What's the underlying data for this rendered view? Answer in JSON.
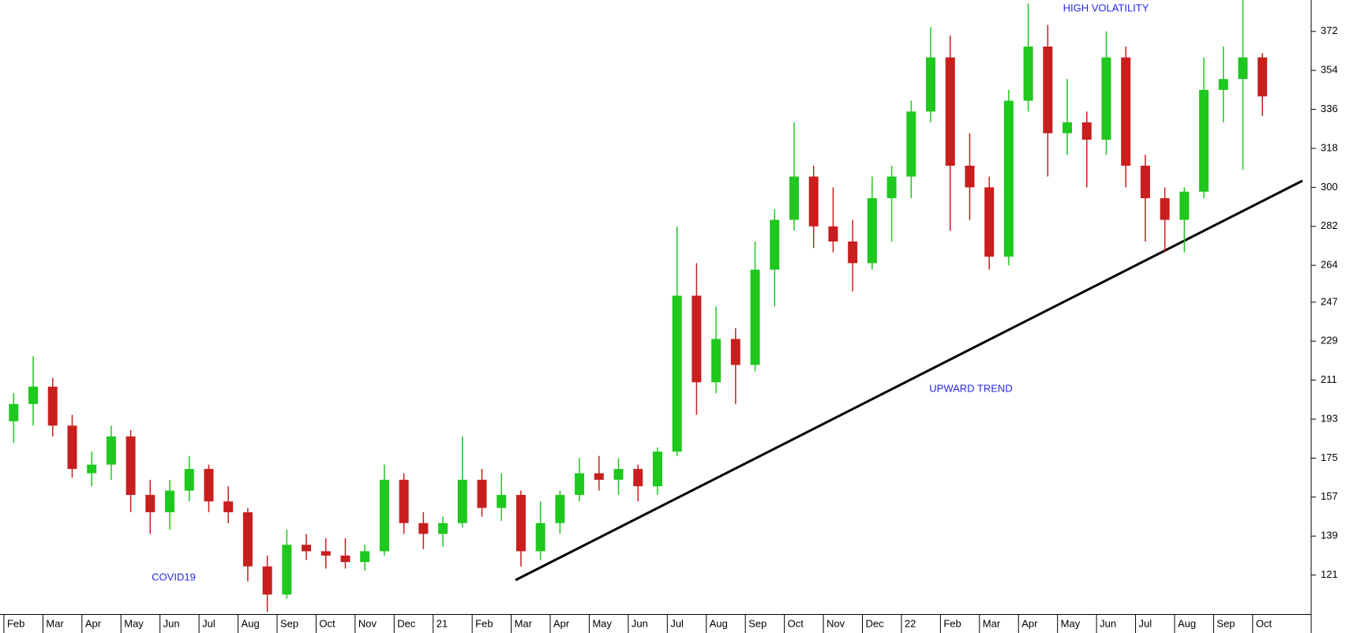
{
  "chart_data": {
    "type": "candlestick",
    "x": [
      0.25,
      0.75,
      1.25,
      1.75,
      2.25,
      2.75,
      3.25,
      3.75,
      4.25,
      4.75,
      5.25,
      5.75,
      6.25,
      6.75,
      7.25,
      7.75,
      8.25,
      8.75,
      9.25,
      9.75,
      10.25,
      10.75,
      11.25,
      11.75,
      12.25,
      12.75,
      13.25,
      13.75,
      14.25,
      14.75,
      15.25,
      15.75,
      16.25,
      16.75,
      17.25,
      17.75,
      18.25,
      18.75,
      19.25,
      19.75,
      20.25,
      20.75,
      21.25,
      21.75,
      22.25,
      22.75,
      23.25,
      23.75,
      24.25,
      24.75,
      25.25,
      25.75,
      26.25,
      26.75,
      27.25,
      27.75,
      28.25,
      28.75,
      29.25,
      29.75,
      30.25,
      30.75,
      31.25,
      31.75,
      32.25
    ],
    "open": [
      192,
      200,
      208,
      190,
      168,
      172,
      185,
      158,
      150,
      160,
      170,
      155,
      150,
      125,
      112,
      135,
      132,
      130,
      127,
      132,
      165,
      145,
      140,
      145,
      165,
      152,
      158,
      132,
      145,
      158,
      168,
      165,
      170,
      162,
      178,
      250,
      210,
      230,
      218,
      262,
      285,
      305,
      282,
      275,
      265,
      295,
      305,
      335,
      360,
      310,
      300,
      268,
      340,
      365,
      325,
      330,
      322,
      360,
      310,
      295,
      285,
      298,
      345,
      350,
      360
    ],
    "high": [
      205,
      222,
      212,
      195,
      178,
      190,
      188,
      165,
      165,
      176,
      172,
      162,
      152,
      130,
      142,
      140,
      138,
      138,
      135,
      172,
      168,
      150,
      148,
      185,
      170,
      168,
      160,
      155,
      160,
      175,
      176,
      175,
      172,
      180,
      282,
      265,
      245,
      235,
      275,
      290,
      330,
      310,
      300,
      285,
      305,
      310,
      340,
      374,
      370,
      325,
      305,
      345,
      385,
      375,
      350,
      335,
      372,
      365,
      315,
      300,
      300,
      360,
      365,
      387,
      362
    ],
    "low": [
      182,
      190,
      185,
      166,
      162,
      165,
      150,
      140,
      142,
      155,
      150,
      145,
      118,
      104,
      110,
      128,
      124,
      124,
      123,
      130,
      140,
      133,
      134,
      143,
      148,
      146,
      125,
      128,
      140,
      155,
      160,
      158,
      155,
      158,
      176,
      195,
      205,
      200,
      215,
      245,
      280,
      272,
      270,
      252,
      262,
      275,
      295,
      330,
      280,
      285,
      262,
      264,
      335,
      305,
      315,
      300,
      315,
      300,
      275,
      270,
      270,
      295,
      330,
      308,
      333
    ],
    "close": [
      200,
      208,
      190,
      170,
      172,
      185,
      158,
      150,
      160,
      170,
      155,
      150,
      125,
      112,
      135,
      132,
      130,
      127,
      132,
      165,
      145,
      140,
      145,
      165,
      152,
      158,
      132,
      145,
      158,
      168,
      165,
      170,
      162,
      178,
      250,
      210,
      230,
      218,
      262,
      285,
      305,
      282,
      275,
      265,
      295,
      305,
      335,
      360,
      310,
      300,
      268,
      340,
      365,
      325,
      330,
      322,
      360,
      310,
      295,
      285,
      298,
      345,
      350,
      360,
      342
    ],
    "up_color": "#1ec81e",
    "down_color": "#c81e1e",
    "xlim": [
      -0.1,
      33.5
    ],
    "xticks": [
      {
        "value": 0,
        "label": "Feb"
      },
      {
        "value": 1,
        "label": "Mar"
      },
      {
        "value": 2,
        "label": "Apr"
      },
      {
        "value": 3,
        "label": "May"
      },
      {
        "value": 4,
        "label": "Jun"
      },
      {
        "value": 5,
        "label": "Jul"
      },
      {
        "value": 6,
        "label": "Aug"
      },
      {
        "value": 7,
        "label": "Sep"
      },
      {
        "value": 8,
        "label": "Oct"
      },
      {
        "value": 9,
        "label": "Nov"
      },
      {
        "value": 10,
        "label": "Dec"
      },
      {
        "value": 11,
        "label": "21"
      },
      {
        "value": 12,
        "label": "Feb"
      },
      {
        "value": 13,
        "label": "Mar"
      },
      {
        "value": 14,
        "label": "Apr"
      },
      {
        "value": 15,
        "label": "May"
      },
      {
        "value": 16,
        "label": "Jun"
      },
      {
        "value": 17,
        "label": "Jul"
      },
      {
        "value": 18,
        "label": "Aug"
      },
      {
        "value": 19,
        "label": "Sep"
      },
      {
        "value": 20,
        "label": "Oct"
      },
      {
        "value": 21,
        "label": "Nov"
      },
      {
        "value": 22,
        "label": "Dec"
      },
      {
        "value": 23,
        "label": "22"
      },
      {
        "value": 24,
        "label": "Feb"
      },
      {
        "value": 25,
        "label": "Mar"
      },
      {
        "value": 26,
        "label": "Apr"
      },
      {
        "value": 27,
        "label": "May"
      },
      {
        "value": 28,
        "label": "Jun"
      },
      {
        "value": 29,
        "label": "Jul"
      },
      {
        "value": 30,
        "label": "Aug"
      },
      {
        "value": 31,
        "label": "Sep"
      },
      {
        "value": 32,
        "label": "Oct"
      }
    ],
    "ylim": [
      103,
      386.5
    ],
    "yticks": [
      121,
      139,
      157,
      175,
      193,
      211,
      229,
      247,
      264,
      282,
      300,
      318,
      336,
      354,
      372
    ],
    "annotations": [
      "COVID19",
      "UPWARD TREND",
      "HIGH VOLATILITY"
    ]
  }
}
